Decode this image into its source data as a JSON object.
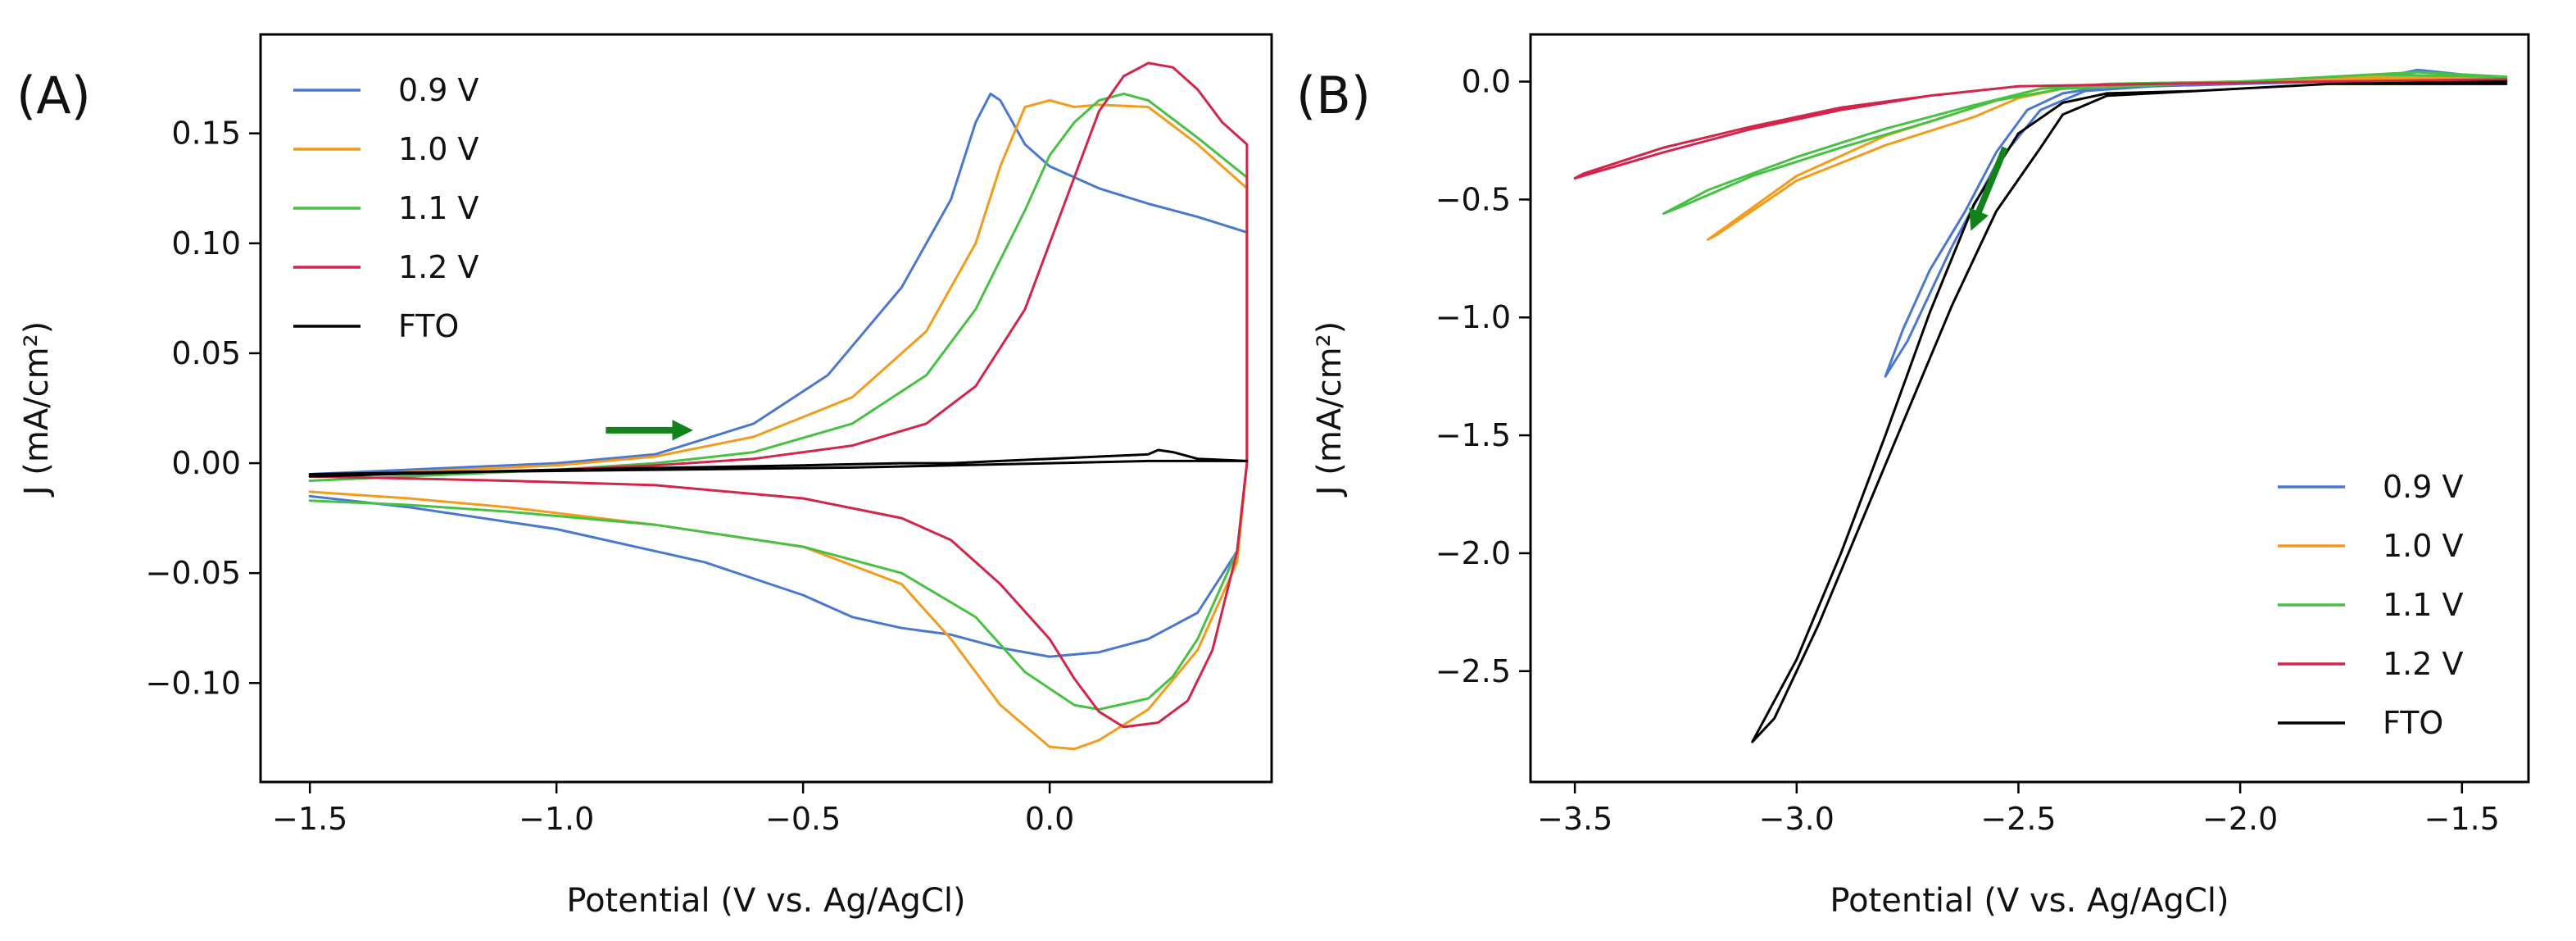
{
  "figure": {
    "series_colors": {
      "0.9 V": "#4a78d0",
      "1.0 V": "#f39b1b",
      "1.1 V": "#47c144",
      "1.2 V": "#d3244b",
      "FTO": "#000000"
    },
    "arrow_color": "#14821a"
  },
  "chart_data": [
    {
      "type": "line",
      "panel_label": "(A)",
      "xlabel": "Potential (V vs. Ag/AgCl)",
      "ylabel": "J (mA/cm²)",
      "xlim": [
        -1.6,
        0.45
      ],
      "ylim": [
        -0.145,
        0.195
      ],
      "xticks": [
        -1.5,
        -1.0,
        -0.5,
        0.0
      ],
      "xtick_labels": [
        "−1.5",
        "−1.0",
        "−0.5",
        "0.0"
      ],
      "yticks": [
        -0.1,
        -0.05,
        0.0,
        0.05,
        0.1,
        0.15
      ],
      "ytick_labels": [
        "−0.10",
        "−0.05",
        "0.00",
        "0.05",
        "0.10",
        "0.15"
      ],
      "legend_position": "upper-left",
      "legend": [
        "0.9 V",
        "1.0 V",
        "1.1 V",
        "1.2 V",
        "FTO"
      ],
      "annotation": "scan direction arrow pointing right near (-0.9, 0.015)",
      "arrow": {
        "from": [
          -0.9,
          0.015
        ],
        "to": [
          -0.74,
          0.015
        ]
      },
      "series": [
        {
          "name": "0.9 V",
          "x": [
            -1.5,
            -1.2,
            -1.0,
            -0.8,
            -0.6,
            -0.45,
            -0.3,
            -0.2,
            -0.15,
            -0.12,
            -0.1,
            -0.05,
            0.0,
            0.1,
            0.2,
            0.3,
            0.4,
            0.4,
            0.38,
            0.3,
            0.2,
            0.1,
            0.0,
            -0.1,
            -0.2,
            -0.3,
            -0.4,
            -0.5,
            -0.7,
            -1.0,
            -1.3,
            -1.5
          ],
          "y": [
            -0.005,
            -0.002,
            0.0,
            0.004,
            0.018,
            0.04,
            0.08,
            0.12,
            0.155,
            0.168,
            0.165,
            0.145,
            0.135,
            0.125,
            0.118,
            0.112,
            0.105,
            0.0,
            -0.04,
            -0.068,
            -0.08,
            -0.086,
            -0.088,
            -0.084,
            -0.078,
            -0.075,
            -0.07,
            -0.06,
            -0.045,
            -0.03,
            -0.02,
            -0.015
          ]
        },
        {
          "name": "1.0 V",
          "x": [
            -1.5,
            -1.2,
            -1.0,
            -0.8,
            -0.6,
            -0.4,
            -0.25,
            -0.15,
            -0.1,
            -0.05,
            0.0,
            0.05,
            0.1,
            0.2,
            0.3,
            0.4,
            0.4,
            0.38,
            0.3,
            0.2,
            0.1,
            0.05,
            0.0,
            -0.1,
            -0.2,
            -0.3,
            -0.5,
            -0.8,
            -1.1,
            -1.3,
            -1.5
          ],
          "y": [
            -0.006,
            -0.003,
            -0.001,
            0.003,
            0.012,
            0.03,
            0.06,
            0.1,
            0.135,
            0.162,
            0.165,
            0.162,
            0.163,
            0.162,
            0.145,
            0.125,
            0.0,
            -0.045,
            -0.085,
            -0.112,
            -0.126,
            -0.13,
            -0.129,
            -0.11,
            -0.08,
            -0.055,
            -0.038,
            -0.028,
            -0.02,
            -0.016,
            -0.013
          ]
        },
        {
          "name": "1.1 V",
          "x": [
            -1.5,
            -1.2,
            -1.0,
            -0.8,
            -0.6,
            -0.4,
            -0.25,
            -0.15,
            -0.05,
            0.0,
            0.05,
            0.1,
            0.15,
            0.2,
            0.3,
            0.4,
            0.4,
            0.38,
            0.3,
            0.25,
            0.2,
            0.1,
            0.05,
            -0.05,
            -0.15,
            -0.3,
            -0.5,
            -0.8,
            -1.1,
            -1.3,
            -1.5
          ],
          "y": [
            -0.008,
            -0.005,
            -0.003,
            0.0,
            0.005,
            0.018,
            0.04,
            0.07,
            0.115,
            0.14,
            0.155,
            0.165,
            0.168,
            0.165,
            0.148,
            0.13,
            0.0,
            -0.04,
            -0.08,
            -0.097,
            -0.107,
            -0.112,
            -0.11,
            -0.095,
            -0.07,
            -0.05,
            -0.038,
            -0.028,
            -0.022,
            -0.019,
            -0.017
          ]
        },
        {
          "name": "1.2 V",
          "x": [
            -1.5,
            -1.2,
            -1.0,
            -0.8,
            -0.6,
            -0.4,
            -0.25,
            -0.15,
            -0.05,
            0.05,
            0.1,
            0.15,
            0.2,
            0.25,
            0.3,
            0.35,
            0.4,
            0.4,
            0.38,
            0.33,
            0.28,
            0.22,
            0.15,
            0.1,
            0.05,
            0.0,
            -0.1,
            -0.2,
            -0.3,
            -0.5,
            -0.8,
            -1.1,
            -1.3,
            -1.5
          ],
          "y": [
            -0.006,
            -0.004,
            -0.003,
            -0.001,
            0.002,
            0.008,
            0.018,
            0.035,
            0.07,
            0.13,
            0.16,
            0.176,
            0.182,
            0.18,
            0.17,
            0.155,
            0.145,
            0.0,
            -0.04,
            -0.085,
            -0.108,
            -0.118,
            -0.12,
            -0.113,
            -0.098,
            -0.08,
            -0.055,
            -0.035,
            -0.025,
            -0.016,
            -0.01,
            -0.008,
            -0.007,
            -0.006
          ]
        },
        {
          "name": "FTO",
          "x": [
            -1.5,
            -1.0,
            -0.5,
            -0.3,
            -0.2,
            -0.1,
            0.0,
            0.1,
            0.2,
            0.22,
            0.25,
            0.3,
            0.4,
            0.3,
            0.2,
            0.0,
            -0.2,
            -0.4,
            -0.8,
            -1.2,
            -1.5
          ],
          "y": [
            -0.006,
            -0.003,
            -0.001,
            0.0,
            0.0,
            0.001,
            0.002,
            0.003,
            0.004,
            0.006,
            0.005,
            0.002,
            0.001,
            0.001,
            0.001,
            0.0,
            -0.001,
            -0.002,
            -0.003,
            -0.004,
            -0.005
          ]
        }
      ]
    },
    {
      "type": "line",
      "panel_label": "(B)",
      "xlabel": "Potential (V vs. Ag/AgCl)",
      "ylabel": "J (mA/cm²)",
      "xlim": [
        -3.6,
        -1.35
      ],
      "ylim": [
        -2.97,
        0.2
      ],
      "xticks": [
        -3.5,
        -3.0,
        -2.5,
        -2.0,
        -1.5
      ],
      "xtick_labels": [
        "−3.5",
        "−3.0",
        "−2.5",
        "−2.0",
        "−1.5"
      ],
      "yticks": [
        -2.5,
        -2.0,
        -1.5,
        -1.0,
        -0.5,
        0.0
      ],
      "ytick_labels": [
        "−2.5",
        "−2.0",
        "−1.5",
        "−1.0",
        "−0.5",
        "0.0"
      ],
      "legend_position": "lower-right",
      "legend": [
        "0.9 V",
        "1.0 V",
        "1.1 V",
        "1.2 V",
        "FTO"
      ],
      "annotation": "scan direction arrow pointing down-left near (-2.55, -0.3)",
      "arrow": {
        "from": [
          -2.53,
          -0.28
        ],
        "to": [
          -2.6,
          -0.6
        ]
      },
      "series": [
        {
          "name": "0.9 V",
          "x": [
            -1.4,
            -1.6,
            -1.8,
            -2.0,
            -2.2,
            -2.35,
            -2.45,
            -2.55,
            -2.65,
            -2.75,
            -2.8,
            -2.76,
            -2.7,
            -2.62,
            -2.55,
            -2.48,
            -2.4,
            -2.3,
            -2.0,
            -1.7,
            -1.6,
            -1.5,
            -1.4
          ],
          "y": [
            0.02,
            0.04,
            0.0,
            -0.01,
            -0.02,
            -0.04,
            -0.12,
            -0.35,
            -0.7,
            -1.1,
            -1.25,
            -1.05,
            -0.8,
            -0.55,
            -0.3,
            -0.12,
            -0.05,
            -0.02,
            -0.01,
            0.01,
            0.05,
            0.03,
            0.02
          ]
        },
        {
          "name": "1.0 V",
          "x": [
            -1.4,
            -1.7,
            -2.0,
            -2.3,
            -2.45,
            -2.55,
            -2.65,
            -2.8,
            -3.0,
            -3.2,
            -3.18,
            -3.0,
            -2.8,
            -2.6,
            -2.5,
            -2.4,
            -2.0,
            -1.7,
            -1.4
          ],
          "y": [
            0.02,
            0.01,
            0.0,
            -0.01,
            -0.03,
            -0.08,
            -0.14,
            -0.23,
            -0.4,
            -0.67,
            -0.65,
            -0.42,
            -0.27,
            -0.15,
            -0.07,
            -0.03,
            0.0,
            0.02,
            0.01
          ]
        },
        {
          "name": "1.1 V",
          "x": [
            -1.4,
            -1.7,
            -2.0,
            -2.3,
            -2.45,
            -2.6,
            -2.8,
            -3.0,
            -3.2,
            -3.3,
            -3.26,
            -3.1,
            -2.9,
            -2.7,
            -2.55,
            -2.4,
            -2.0,
            -1.6,
            -1.4
          ],
          "y": [
            0.02,
            0.03,
            0.0,
            -0.01,
            -0.03,
            -0.1,
            -0.2,
            -0.32,
            -0.46,
            -0.56,
            -0.53,
            -0.4,
            -0.28,
            -0.17,
            -0.08,
            -0.03,
            0.0,
            0.04,
            0.02
          ]
        },
        {
          "name": "1.2 V",
          "x": [
            -1.4,
            -1.8,
            -2.2,
            -2.5,
            -2.7,
            -2.9,
            -3.1,
            -3.3,
            -3.5,
            -3.48,
            -3.3,
            -3.1,
            -2.9,
            -2.7,
            -2.5,
            -2.2,
            -1.8,
            -1.4
          ],
          "y": [
            0.01,
            0.0,
            -0.01,
            -0.02,
            -0.06,
            -0.12,
            -0.2,
            -0.3,
            -0.41,
            -0.39,
            -0.28,
            -0.19,
            -0.11,
            -0.06,
            -0.02,
            -0.01,
            0.0,
            0.01
          ]
        },
        {
          "name": "FTO",
          "x": [
            -1.4,
            -1.8,
            -2.1,
            -2.3,
            -2.4,
            -2.5,
            -2.6,
            -2.7,
            -2.8,
            -2.9,
            -3.0,
            -3.1,
            -3.05,
            -2.95,
            -2.85,
            -2.75,
            -2.65,
            -2.55,
            -2.45,
            -2.4,
            -2.3,
            -2.1,
            -1.8,
            -1.4
          ],
          "y": [
            -0.01,
            -0.01,
            -0.04,
            -0.05,
            -0.09,
            -0.22,
            -0.52,
            -0.98,
            -1.5,
            -2.0,
            -2.45,
            -2.8,
            -2.7,
            -2.3,
            -1.85,
            -1.4,
            -0.95,
            -0.55,
            -0.28,
            -0.14,
            -0.06,
            -0.04,
            -0.01,
            0.0
          ]
        }
      ]
    }
  ]
}
